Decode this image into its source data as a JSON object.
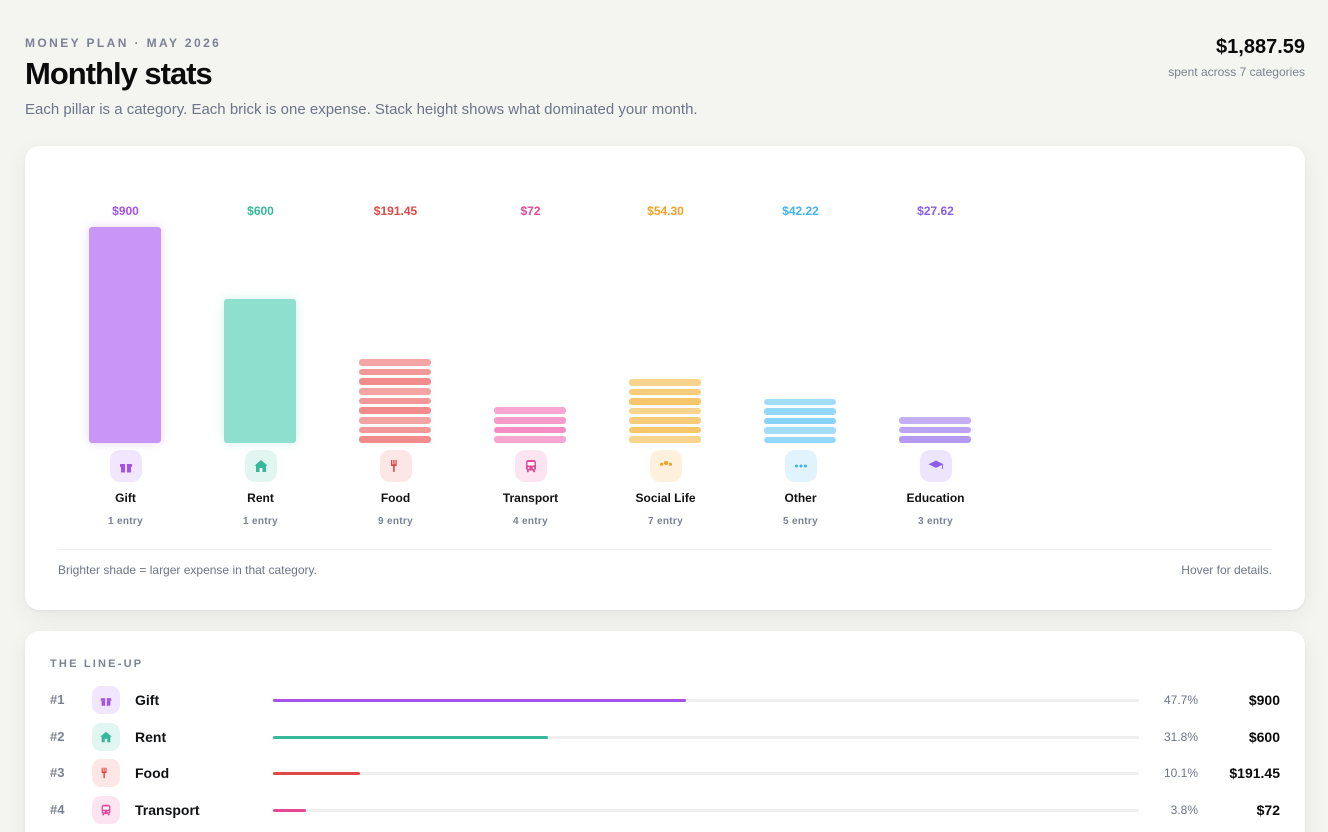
{
  "header": {
    "eyebrow": "MONEY PLAN · MAY 2026",
    "title": "Monthly stats",
    "subtitle": "Each pillar is a category. Each brick is one expense. Stack height shows what dominated your month.",
    "total": "$1,887.59",
    "total_caption": "spent across 7 categories"
  },
  "chart_data": {
    "type": "bar",
    "title": "",
    "categories": [
      "Gift",
      "Rent",
      "Food",
      "Transport",
      "Social Life",
      "Other",
      "Education"
    ],
    "values": [
      900,
      600,
      191.45,
      72,
      54.3,
      42.22,
      27.62
    ],
    "entries": [
      1,
      1,
      9,
      4,
      7,
      5,
      3
    ]
  },
  "pillars": [
    {
      "name": "Gift",
      "value_label": "$900",
      "count_label": "1 entry",
      "color": "#c896f7",
      "text_color": "#a452e8",
      "icon_bg": "#f1e6fd",
      "icon": "gift-icon",
      "bricks": 1,
      "stack_height": 216
    },
    {
      "name": "Rent",
      "value_label": "$600",
      "count_label": "1 entry",
      "color": "#8fdfcf",
      "text_color": "#35b99a",
      "icon_bg": "#e2f6f1",
      "icon": "house-icon",
      "bricks": 1,
      "stack_height": 144
    },
    {
      "name": "Food",
      "value_label": "$191.45",
      "count_label": "9 entry",
      "color": "#f28b8b",
      "text_color": "#e04848",
      "icon_bg": "#fde6e6",
      "icon": "utensils-icon",
      "bricks": 9,
      "stack_height": 84
    },
    {
      "name": "Transport",
      "value_label": "$72",
      "count_label": "4 entry",
      "color": "#f58dc4",
      "text_color": "#e3489a",
      "icon_bg": "#fde4f1",
      "icon": "bus-icon",
      "bricks": 4,
      "stack_height": 36
    },
    {
      "name": "Social Life",
      "value_label": "$54.30",
      "count_label": "7 entry",
      "color": "#f5c66a",
      "text_color": "#f0a129",
      "icon_bg": "#fdf1dd",
      "icon": "people-icon",
      "bricks": 7,
      "stack_height": 64
    },
    {
      "name": "Other",
      "value_label": "$42.22",
      "count_label": "5 entry",
      "color": "#86d3f8",
      "text_color": "#41b4ee",
      "icon_bg": "#e1f3fd",
      "icon": "ellipsis-icon",
      "bricks": 5,
      "stack_height": 44
    },
    {
      "name": "Education",
      "value_label": "$27.62",
      "count_label": "3 entry",
      "color": "#b399f2",
      "text_color": "#8b5ee6",
      "icon_bg": "#ece5fc",
      "icon": "graduation-cap-icon",
      "bricks": 3,
      "stack_height": 26
    }
  ],
  "chart_footer": {
    "legend_note": "Brighter shade = larger expense in that category.",
    "hover_note": "Hover for details."
  },
  "lineup": {
    "title": "THE LINE-UP",
    "rows": [
      {
        "rank": "#1",
        "name": "Gift",
        "pct": "47.7%",
        "share": 0.477,
        "amount": "$900",
        "color": "#a452e8",
        "icon_bg": "#f1e6fd",
        "icon": "gift-icon"
      },
      {
        "rank": "#2",
        "name": "Rent",
        "pct": "31.8%",
        "share": 0.318,
        "amount": "$600",
        "color": "#35b99a",
        "icon_bg": "#e2f6f1",
        "icon": "house-icon"
      },
      {
        "rank": "#3",
        "name": "Food",
        "pct": "10.1%",
        "share": 0.101,
        "amount": "$191.45",
        "color": "#e04848",
        "icon_bg": "#fde6e6",
        "icon": "utensils-icon"
      },
      {
        "rank": "#4",
        "name": "Transport",
        "pct": "3.8%",
        "share": 0.038,
        "amount": "$72",
        "color": "#e3489a",
        "icon_bg": "#fde4f1",
        "icon": "bus-icon"
      }
    ]
  }
}
